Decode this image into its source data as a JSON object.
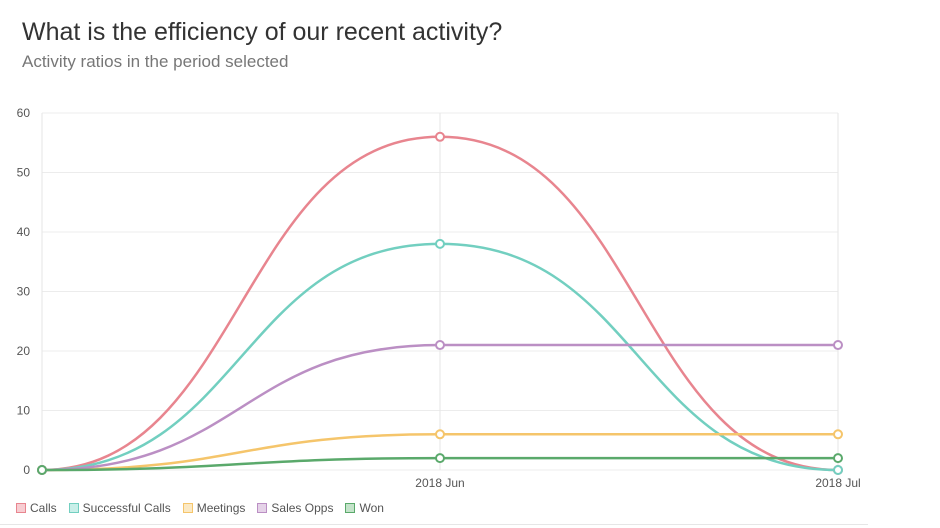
{
  "header": {
    "title": "What is the efficiency of our recent activity?",
    "subtitle": "Activity ratios in the period selected"
  },
  "chart_data": {
    "type": "line",
    "x": [
      "",
      "2018 Jun",
      "2018 Jul"
    ],
    "ylim": [
      0,
      60
    ],
    "yticks": [
      0,
      10,
      20,
      30,
      40,
      50,
      60
    ],
    "grid": true,
    "legend_position": "bottom-left",
    "series": [
      {
        "name": "Calls",
        "values": [
          0,
          56,
          0
        ],
        "color": "#e8858f",
        "fill": "#f7cdd2"
      },
      {
        "name": "Successful Calls",
        "values": [
          0,
          38,
          0
        ],
        "color": "#72cfc0",
        "fill": "#c9efe9"
      },
      {
        "name": "Meetings",
        "values": [
          0,
          6,
          6
        ],
        "color": "#f5c56b",
        "fill": "#fbe9c4"
      },
      {
        "name": "Sales Opps",
        "values": [
          0,
          21,
          21
        ],
        "color": "#bb8fc4",
        "fill": "#e5d3e8"
      },
      {
        "name": "Won",
        "values": [
          0,
          2,
          2
        ],
        "color": "#5aa96b",
        "fill": "#c4e3ca"
      }
    ]
  }
}
